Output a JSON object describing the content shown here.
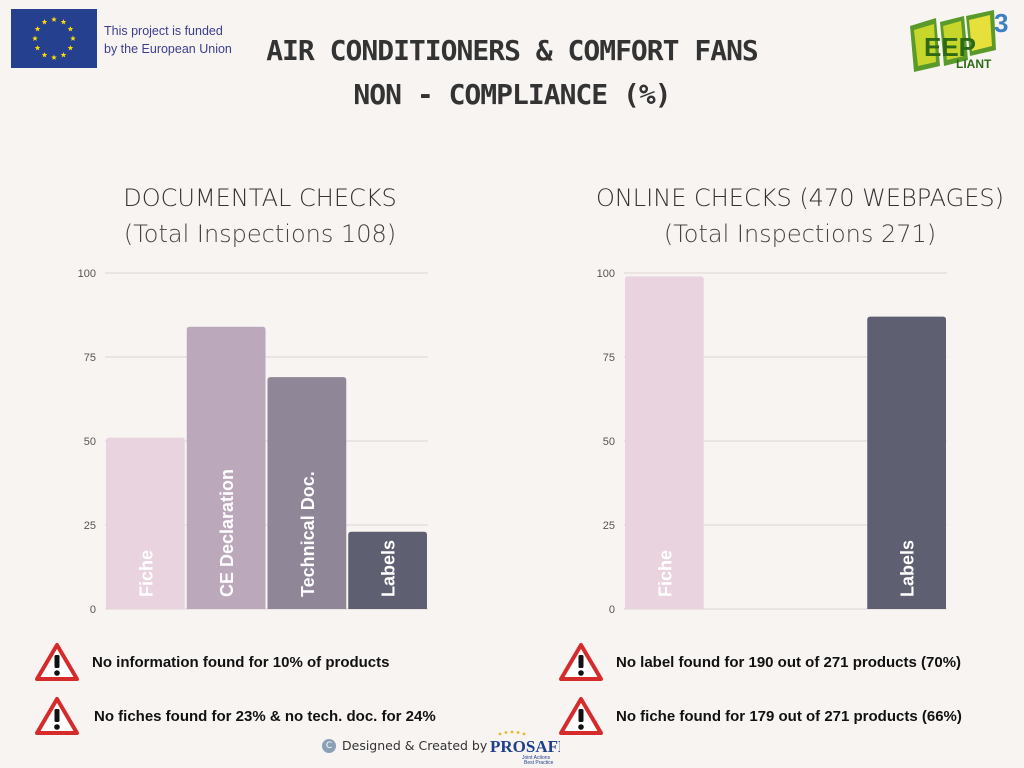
{
  "eu": {
    "line1": "This project is funded",
    "line2": "by the European Union"
  },
  "title": {
    "line1": "AIR CONDITIONERS & COMFORT FANS",
    "line2": "NON - COMPLIANCE (%)"
  },
  "logo": {
    "main": "EEP",
    "sub": "LIANT",
    "super": "3"
  },
  "colors": {
    "fiche": "#e8d3df",
    "ce": "#bba9bb",
    "tech": "#8f8698",
    "labels": "#5e5f70",
    "warning_red": "#d62b2b",
    "background": "#f8f4f2"
  },
  "chart_data": [
    {
      "type": "bar",
      "title": "DOCUMENTAL CHECKS",
      "subtitle": "(Total Inspections 108)",
      "categories": [
        "Fiche",
        "CE Declaration",
        "Technical Doc.",
        "Labels"
      ],
      "values": [
        51,
        84,
        69,
        23
      ],
      "yticks": [
        "0",
        "25",
        "50",
        "75",
        "100"
      ],
      "ylim": [
        0,
        100
      ],
      "grid": true
    },
    {
      "type": "bar",
      "title": "ONLINE CHECKS (470 WEBPAGES)",
      "subtitle": "(Total Inspections 271)",
      "categories": [
        "Fiche",
        "",
        "",
        "Labels"
      ],
      "values": [
        99,
        null,
        null,
        87
      ],
      "yticks": [
        "0",
        "25",
        "50",
        "75",
        "100"
      ],
      "ylim": [
        0,
        100
      ],
      "grid": true
    }
  ],
  "warnings": {
    "left1": "No information found for 10% of products",
    "left2": "No  fiches found for 23% & no tech. doc. for 24%",
    "right1": "No label found for 190 out of 271 products (70%)",
    "right2": "No fiche found for 179 out of 271 products (66%)"
  },
  "footer": {
    "text": "Designed & Created by",
    "brand": "PROSAFE",
    "brand_sub1": "Joint Actions",
    "brand_sub2": "Best Practice"
  }
}
